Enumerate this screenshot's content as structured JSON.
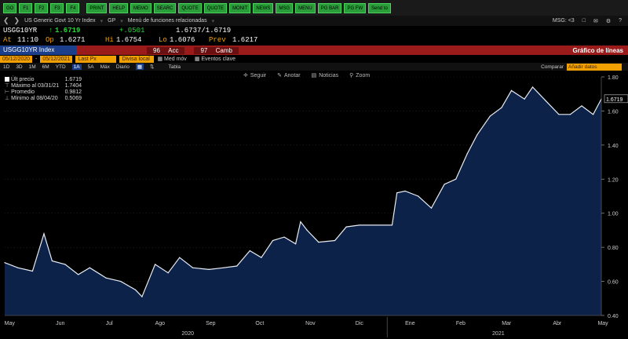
{
  "fkeys": [
    "GO",
    "F1",
    "F2",
    "F3",
    "F4",
    "PRINT",
    "HELP",
    "MEMO",
    "SEARC",
    "QUOTE",
    "QUOTE",
    "MONIT",
    "NEWS",
    "MSG",
    "MENU",
    "PG BAR",
    "PG FW",
    "Send to"
  ],
  "nav": {
    "security": "US Generic Govt 10 Yr Index",
    "dropdown": "GP",
    "menu": "Menú de funciones relacionadas",
    "msg": "MSG: <3"
  },
  "ticker": {
    "symbol": "USGG10YR",
    "last": "1.6719",
    "change": "+.0501",
    "bidask": "1.6737/1.6719",
    "at_label": "At",
    "at": "11:10",
    "op_label": "Op",
    "op": "1.6271",
    "hi_label": "Hi",
    "hi": "1.6754",
    "lo_label": "Lo",
    "lo": "1.6076",
    "prev_label": "Prev",
    "prev": "1.6217"
  },
  "header": {
    "index": "USGG10YR Index",
    "acc": "Acc",
    "camb": "Camb",
    "title": "Gráfico de líneas"
  },
  "daterow": {
    "from": "05/12/2020",
    "to": "05/12/2021",
    "field": "Last Px",
    "currency": "Divisa local",
    "med": "Med móv",
    "events": "Eventos clave"
  },
  "periods": {
    "items": [
      "1D",
      "3D",
      "1M",
      "6M",
      "YTD",
      "1A",
      "5A",
      "Máx",
      "Diario"
    ],
    "selected": "1A",
    "tabla": "Tabla",
    "compare": "Comparar",
    "compare_placeholder": "Añadir datos"
  },
  "tools": {
    "follow": "Seguir",
    "annotate": "Anotar",
    "news": "Noticias",
    "zoom": "Zoom"
  },
  "legend": {
    "last_label": "Últ precio",
    "last": "1.6719",
    "max_label": "Máximo al 03/31/21",
    "max": "1.7404",
    "avg_label": "Promedio",
    "avg": "0.9812",
    "min_label": "Mínimo al 08/04/20",
    "min": "0.5069"
  },
  "colors": {
    "line": "#e8ecf4",
    "fill": "#0d2248",
    "accent": "#f0a000",
    "red": "#9b1b1b"
  },
  "chart_data": {
    "type": "area",
    "series_name": "Últ precio",
    "ylim": [
      0.4,
      1.8
    ],
    "yticks": [
      "1.80",
      "1.60",
      "1.40",
      "1.20",
      "1.00",
      "0.80",
      "0.60",
      "0.40"
    ],
    "last_label": "1.6719",
    "months": [
      "May",
      "Jun",
      "Jul",
      "Ago",
      "Sep",
      "Oct",
      "Nov",
      "Dic",
      "Ene",
      "Feb",
      "Mar",
      "Abr",
      "May"
    ],
    "years": [
      "2020",
      "2021"
    ],
    "x": [
      "2020-05-12",
      "2020-05-20",
      "2020-05-29",
      "2020-06-05",
      "2020-06-10",
      "2020-06-18",
      "2020-06-26",
      "2020-07-03",
      "2020-07-13",
      "2020-07-22",
      "2020-07-31",
      "2020-08-04",
      "2020-08-12",
      "2020-08-20",
      "2020-08-27",
      "2020-09-04",
      "2020-09-14",
      "2020-09-23",
      "2020-10-01",
      "2020-10-09",
      "2020-10-16",
      "2020-10-23",
      "2020-10-30",
      "2020-11-06",
      "2020-11-09",
      "2020-11-13",
      "2020-11-20",
      "2020-11-30",
      "2020-12-07",
      "2020-12-15",
      "2020-12-24",
      "2021-01-04",
      "2021-01-07",
      "2021-01-12",
      "2021-01-20",
      "2021-01-28",
      "2021-02-05",
      "2021-02-12",
      "2021-02-19",
      "2021-02-25",
      "2021-03-05",
      "2021-03-12",
      "2021-03-18",
      "2021-03-26",
      "2021-03-31",
      "2021-04-08",
      "2021-04-16",
      "2021-04-23",
      "2021-04-30",
      "2021-05-07",
      "2021-05-12"
    ],
    "values": [
      0.71,
      0.68,
      0.66,
      0.88,
      0.72,
      0.7,
      0.64,
      0.68,
      0.62,
      0.6,
      0.55,
      0.51,
      0.7,
      0.65,
      0.74,
      0.68,
      0.67,
      0.68,
      0.69,
      0.78,
      0.74,
      0.84,
      0.86,
      0.82,
      0.95,
      0.9,
      0.83,
      0.84,
      0.92,
      0.93,
      0.93,
      0.93,
      1.12,
      1.13,
      1.1,
      1.03,
      1.17,
      1.2,
      1.35,
      1.46,
      1.57,
      1.62,
      1.72,
      1.67,
      1.74,
      1.66,
      1.58,
      1.58,
      1.63,
      1.58,
      1.67
    ]
  }
}
